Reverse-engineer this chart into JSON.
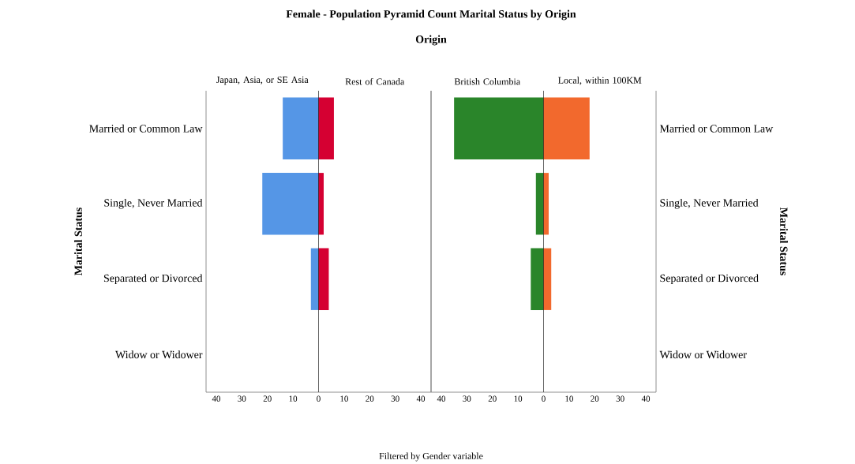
{
  "chart_data": [
    {
      "type": "bar",
      "orientation": "horizontal",
      "stacked": true,
      "title": "Female - Population Pyramid Count Marital Status by Origin",
      "subtitle": "Origin",
      "ylabel": "Marital Status",
      "annotations": [
        "Filtered by Gender variable"
      ],
      "categories": [
        "Married or Common Law",
        "Single, Never Married",
        "Separated or Divorced",
        "Widow or Widower"
      ],
      "series": [
        {
          "name": "Japan, Asia, or SE Asia",
          "color": "#5596e6",
          "values": [
            -14,
            -22,
            -3,
            0
          ]
        },
        {
          "name": "Rest of Canada",
          "color": "#d50032",
          "values": [
            6,
            2,
            4,
            0
          ]
        }
      ],
      "xlim": [
        -44,
        44
      ],
      "xticks": [
        {
          "value": -40,
          "label": "40"
        },
        {
          "value": -30,
          "label": "30"
        },
        {
          "value": -20,
          "label": "20"
        },
        {
          "value": -10,
          "label": "10"
        },
        0,
        10,
        20,
        30,
        40
      ]
    },
    {
      "type": "bar",
      "orientation": "horizontal",
      "stacked": true,
      "ylabel": "Marital Status",
      "categories": [
        "Married or Common Law",
        "Single, Never Married",
        "Separated or Divorced",
        "Widow or Widower"
      ],
      "series": [
        {
          "name": "British Columbia",
          "color": "#2a852a",
          "values": [
            -35,
            -3,
            -5,
            0
          ]
        },
        {
          "name": "Local, within 100KM",
          "color": "#f2692d",
          "values": [
            18,
            2,
            3,
            0
          ]
        }
      ],
      "xlim": [
        -44,
        44
      ],
      "xticks": [
        {
          "value": -40,
          "label": "40"
        },
        {
          "value": -30,
          "label": "30"
        },
        {
          "value": -20,
          "label": "20"
        },
        {
          "value": -10,
          "label": "10"
        },
        0,
        10,
        20,
        30,
        40
      ]
    }
  ]
}
